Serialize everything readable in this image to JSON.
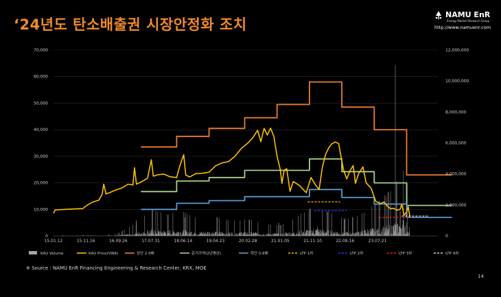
{
  "header": {
    "title": "‘24년도 탄소배출권 시장안정화 조치",
    "logo_name": "NAMU EnR",
    "logo_sub": "Energy Market Research Group",
    "logo_url": "http://www.namuenr.com"
  },
  "footer": {
    "source": "※ Source : NAMU EnR Financing Engineering & Research Center, KRX, MOE",
    "page": "14"
  },
  "colors": {
    "volume": "#a6a6a6",
    "price": "#ffc000",
    "upper": "#ed7d31",
    "base": "#a9d18e",
    "lower": "#5b9bd5",
    "ltp1": "#ffc000",
    "ltp2": "#2f2fff",
    "ltp3": "#ff2020",
    "ltp4": "#d9d9d9"
  },
  "chart_data": {
    "type": "line",
    "x_ticks": [
      "15.01.12",
      "15.11.16",
      "16.09.26",
      "17.07.31",
      "18.06.14",
      "19.04.23",
      "20.02.28",
      "21.01.05",
      "21.11.10",
      "22.09.16",
      "23.07.21"
    ],
    "y_left_ticks": [
      "0",
      "10,000",
      "20,000",
      "30,000",
      "40,000",
      "50,000",
      "60,000",
      "70,000"
    ],
    "y_right_ticks": [
      "0",
      "2,000,000",
      "4,000,000",
      "6,000,000",
      "8,000,000",
      "10,000,000",
      "12,000,000"
    ],
    "ylim_left": [
      0,
      70000
    ],
    "ylim_right": [
      0,
      12000000
    ],
    "legend": [
      "KAU Volume",
      "KAU Price(VWA)",
      "상단 2.0배",
      "준거가격(2년평균)",
      "하단 0.6배",
      "LTP 1차",
      "LTP 2차",
      "LTP 3차",
      "LTP 4차"
    ],
    "series": [
      {
        "name": "상단 2.0배",
        "style": "step",
        "points": [
          [
            2.7,
            33500
          ],
          [
            3.8,
            33500
          ],
          [
            3.8,
            37500
          ],
          [
            4.8,
            37500
          ],
          [
            4.8,
            40500
          ],
          [
            5.9,
            40500
          ],
          [
            5.9,
            44500
          ],
          [
            6.9,
            44500
          ],
          [
            6.9,
            49500
          ],
          [
            7.9,
            49500
          ],
          [
            7.9,
            58000
          ],
          [
            8.9,
            58000
          ],
          [
            8.9,
            48500
          ],
          [
            9.9,
            48500
          ],
          [
            9.9,
            40000
          ],
          [
            10.9,
            40000
          ],
          [
            10.9,
            23000
          ],
          [
            12.3,
            23000
          ]
        ]
      },
      {
        "name": "준거가격(2년평균)",
        "style": "step",
        "points": [
          [
            2.7,
            16700
          ],
          [
            3.8,
            16700
          ],
          [
            3.8,
            20700
          ],
          [
            4.8,
            20700
          ],
          [
            4.8,
            22000
          ],
          [
            5.9,
            22000
          ],
          [
            5.9,
            24700
          ],
          [
            6.9,
            24700
          ],
          [
            6.9,
            24700
          ],
          [
            7.9,
            24700
          ],
          [
            7.9,
            29000
          ],
          [
            8.9,
            29000
          ],
          [
            8.9,
            24200
          ],
          [
            9.9,
            24200
          ],
          [
            9.9,
            20000
          ],
          [
            10.9,
            20000
          ],
          [
            10.9,
            11500
          ],
          [
            12.3,
            11500
          ]
        ]
      },
      {
        "name": "하단 0.6배",
        "style": "step",
        "points": [
          [
            2.7,
            10000
          ],
          [
            3.8,
            10000
          ],
          [
            3.8,
            12300
          ],
          [
            4.8,
            12300
          ],
          [
            4.8,
            13300
          ],
          [
            5.9,
            13300
          ],
          [
            5.9,
            14800
          ],
          [
            6.9,
            14800
          ],
          [
            6.9,
            14800
          ],
          [
            7.9,
            14800
          ],
          [
            7.9,
            17500
          ],
          [
            8.9,
            17500
          ],
          [
            8.9,
            14500
          ],
          [
            9.9,
            14500
          ],
          [
            9.9,
            12000
          ],
          [
            10.9,
            12000
          ],
          [
            10.9,
            7000
          ],
          [
            12.3,
            7000
          ]
        ]
      },
      {
        "name": "KAU Price(VWA)",
        "style": "line",
        "points": [
          [
            0,
            8600
          ],
          [
            0.05,
            9800
          ],
          [
            0.5,
            10100
          ],
          [
            0.9,
            10300
          ],
          [
            1.05,
            11700
          ],
          [
            1.2,
            12700
          ],
          [
            1.4,
            13500
          ],
          [
            1.5,
            15700
          ],
          [
            1.55,
            19500
          ],
          [
            1.62,
            15800
          ],
          [
            1.75,
            16400
          ],
          [
            1.9,
            17200
          ],
          [
            2.1,
            18000
          ],
          [
            2.3,
            19500
          ],
          [
            2.45,
            19200
          ],
          [
            2.5,
            25700
          ],
          [
            2.56,
            19500
          ],
          [
            2.7,
            20300
          ],
          [
            2.9,
            21700
          ],
          [
            3.02,
            28700
          ],
          [
            3.08,
            22500
          ],
          [
            3.2,
            23000
          ],
          [
            3.4,
            23300
          ],
          [
            3.6,
            22300
          ],
          [
            3.8,
            22000
          ],
          [
            3.9,
            26500
          ],
          [
            4.02,
            30600
          ],
          [
            4.08,
            23000
          ],
          [
            4.2,
            22200
          ],
          [
            4.4,
            23500
          ],
          [
            4.6,
            23600
          ],
          [
            4.8,
            24000
          ],
          [
            5.0,
            26400
          ],
          [
            5.2,
            27500
          ],
          [
            5.4,
            28000
          ],
          [
            5.6,
            30000
          ],
          [
            5.8,
            33000
          ],
          [
            6.0,
            35000
          ],
          [
            6.15,
            37000
          ],
          [
            6.3,
            39800
          ],
          [
            6.4,
            35500
          ],
          [
            6.5,
            40500
          ],
          [
            6.6,
            38000
          ],
          [
            6.7,
            40600
          ],
          [
            6.8,
            37500
          ],
          [
            6.9,
            30000
          ],
          [
            7.0,
            25000
          ],
          [
            7.05,
            19800
          ],
          [
            7.12,
            24800
          ],
          [
            7.2,
            25300
          ],
          [
            7.3,
            16800
          ],
          [
            7.4,
            20500
          ],
          [
            7.6,
            18900
          ],
          [
            7.8,
            16300
          ],
          [
            7.95,
            22000
          ],
          [
            8.1,
            19000
          ],
          [
            8.2,
            17500
          ],
          [
            8.3,
            26000
          ],
          [
            8.4,
            30800
          ],
          [
            8.5,
            33300
          ],
          [
            8.6,
            34800
          ],
          [
            8.7,
            35400
          ],
          [
            8.8,
            34800
          ],
          [
            8.95,
            25000
          ],
          [
            9.05,
            21500
          ],
          [
            9.15,
            24500
          ],
          [
            9.25,
            26500
          ],
          [
            9.32,
            19800
          ],
          [
            9.42,
            23500
          ],
          [
            9.55,
            26000
          ],
          [
            9.65,
            20000
          ],
          [
            9.8,
            18000
          ],
          [
            9.95,
            13000
          ],
          [
            10.1,
            12200
          ],
          [
            10.2,
            12800
          ],
          [
            10.3,
            11300
          ],
          [
            10.4,
            10300
          ],
          [
            10.5,
            10400
          ],
          [
            10.6,
            9700
          ],
          [
            10.7,
            10000
          ],
          [
            10.75,
            12000
          ],
          [
            10.82,
            7800
          ],
          [
            10.9,
            9000
          ],
          [
            10.95,
            11000
          ],
          [
            11.0,
            7200
          ]
        ]
      },
      {
        "name": "LTP 1차",
        "style": "dashed",
        "points": [
          [
            7.85,
            12800
          ],
          [
            8.85,
            12800
          ]
        ]
      },
      {
        "name": "LTP 2차",
        "style": "dashed",
        "points": [
          [
            8.05,
            9500
          ],
          [
            9.05,
            9500
          ]
        ]
      },
      {
        "name": "LTP 3차",
        "style": "dashed",
        "points": [
          [
            10.05,
            7000
          ],
          [
            11.05,
            7000
          ]
        ]
      },
      {
        "name": "LTP 4차",
        "style": "dashed",
        "points": [
          [
            10.75,
            7500
          ],
          [
            11.6,
            7500
          ]
        ]
      }
    ],
    "volume_profile": [
      [
        0,
        5000
      ],
      [
        1.5,
        30000
      ],
      [
        2,
        60000
      ],
      [
        2.5,
        250000
      ],
      [
        3,
        550000
      ],
      [
        3.5,
        450000
      ],
      [
        4,
        500000
      ],
      [
        4.5,
        350000
      ],
      [
        5,
        400000
      ],
      [
        5.5,
        300000
      ],
      [
        6,
        350000
      ],
      [
        6.5,
        250000
      ],
      [
        7,
        220000
      ],
      [
        7.5,
        400000
      ],
      [
        8,
        600000
      ],
      [
        8.5,
        500000
      ],
      [
        9,
        350000
      ],
      [
        9.5,
        450000
      ],
      [
        10,
        700000
      ],
      [
        10.5,
        1000000
      ],
      [
        10.8,
        1400000
      ],
      [
        11,
        900000
      ]
    ],
    "volume_spikes": [
      [
        2.55,
        1000000
      ],
      [
        4.05,
        1200000
      ],
      [
        6.95,
        850000
      ],
      [
        8.15,
        600000
      ],
      [
        10.7,
        1600000
      ]
    ]
  }
}
